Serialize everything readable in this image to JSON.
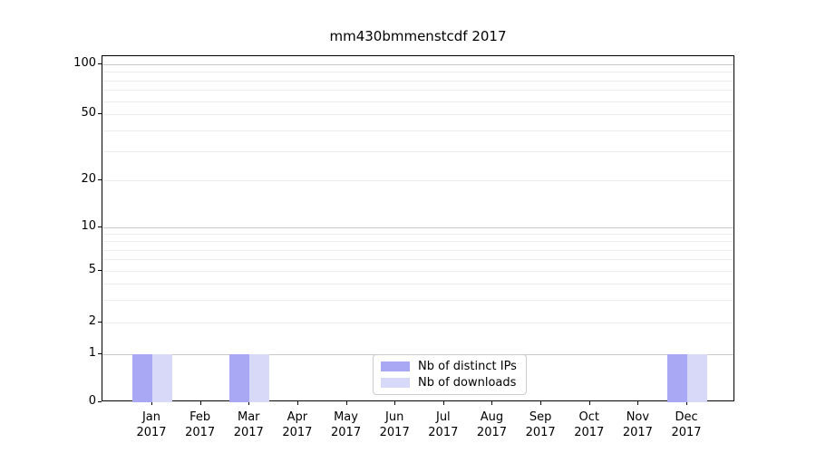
{
  "title": "mm430bmmenstcdf 2017",
  "legend": {
    "items": [
      {
        "label": "Nb of distinct IPs",
        "color": "#a8a8f4"
      },
      {
        "label": "Nb of downloads",
        "color": "#d8d8f9"
      }
    ]
  },
  "y_axis": {
    "tick_labels": [
      "100",
      "50",
      "20",
      "10",
      "5",
      "2",
      "1",
      "0"
    ]
  },
  "x_axis": {
    "labels": [
      {
        "month": "Jan",
        "year": "2017"
      },
      {
        "month": "Feb",
        "year": "2017"
      },
      {
        "month": "Mar",
        "year": "2017"
      },
      {
        "month": "Apr",
        "year": "2017"
      },
      {
        "month": "May",
        "year": "2017"
      },
      {
        "month": "Jun",
        "year": "2017"
      },
      {
        "month": "Jul",
        "year": "2017"
      },
      {
        "month": "Aug",
        "year": "2017"
      },
      {
        "month": "Sep",
        "year": "2017"
      },
      {
        "month": "Oct",
        "year": "2017"
      },
      {
        "month": "Nov",
        "year": "2017"
      },
      {
        "month": "Dec",
        "year": "2017"
      }
    ]
  },
  "chart_data": {
    "type": "bar",
    "title": "mm430bmmenstcdf 2017",
    "categories": [
      "Jan 2017",
      "Feb 2017",
      "Mar 2017",
      "Apr 2017",
      "May 2017",
      "Jun 2017",
      "Jul 2017",
      "Aug 2017",
      "Sep 2017",
      "Oct 2017",
      "Nov 2017",
      "Dec 2017"
    ],
    "series": [
      {
        "name": "Nb of distinct IPs",
        "color": "#a8a8f4",
        "values": [
          1,
          0,
          1,
          0,
          0,
          0,
          0,
          0,
          0,
          0,
          0,
          1
        ]
      },
      {
        "name": "Nb of downloads",
        "color": "#d8d8f9",
        "values": [
          1,
          0,
          1,
          0,
          0,
          0,
          0,
          0,
          0,
          0,
          0,
          1
        ]
      }
    ],
    "yscale": "symlog",
    "yticks": [
      0,
      1,
      2,
      5,
      10,
      20,
      50,
      100
    ],
    "ylim": [
      0,
      110
    ],
    "grid": true,
    "legend_position": "lower center"
  },
  "colors": {
    "grid_major": "#c9c9c9",
    "grid_minor": "#ededed",
    "spine": "#000000",
    "text": "#000000",
    "background": "#ffffff"
  }
}
